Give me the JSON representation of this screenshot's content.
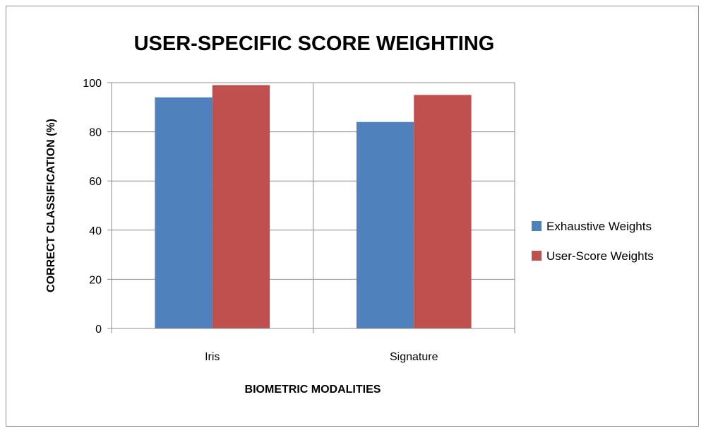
{
  "chart_data": {
    "type": "bar",
    "title": "USER-SPECIFIC SCORE WEIGHTING",
    "xlabel": "BIOMETRIC MODALITIES",
    "ylabel": "CORRECT CLASSIFICATION (%)",
    "categories": [
      "Iris",
      "Signature"
    ],
    "series": [
      {
        "name": "Exhaustive Weights",
        "color": "#4F81BD",
        "values": [
          94,
          84
        ]
      },
      {
        "name": "User-Score Weights",
        "color": "#C0504D",
        "values": [
          99,
          95
        ]
      }
    ],
    "ylim": [
      0,
      100
    ],
    "yticks": [
      "0",
      "20",
      "40",
      "60",
      "80",
      "100"
    ],
    "grid": true,
    "legend": "right"
  }
}
